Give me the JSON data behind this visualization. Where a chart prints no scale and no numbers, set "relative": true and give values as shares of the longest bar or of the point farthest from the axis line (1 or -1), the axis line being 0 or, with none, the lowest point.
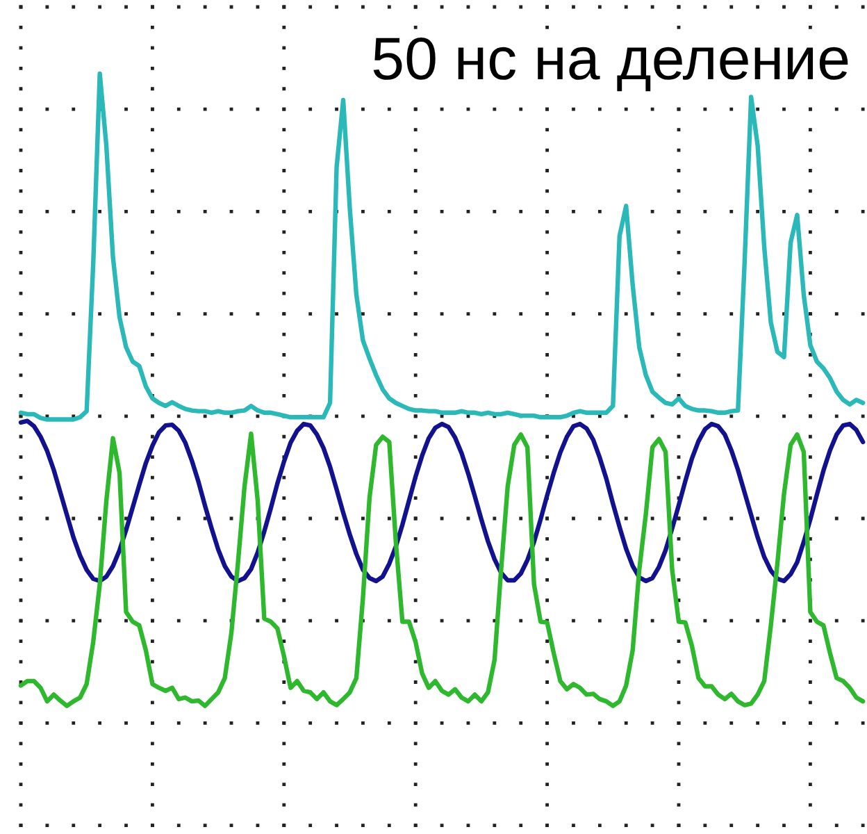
{
  "chart_data": {
    "type": "line",
    "relative": true,
    "grid": true,
    "categories": [
      null,
      null,
      null,
      null,
      null,
      null,
      null,
      null,
      null,
      null,
      null,
      null,
      null,
      null,
      null,
      null,
      null,
      null,
      null,
      null,
      null,
      null,
      null,
      null,
      null,
      null,
      null,
      null,
      null,
      null,
      null,
      null,
      null,
      null,
      null,
      null,
      null,
      null,
      null,
      null,
      null,
      null,
      null,
      null,
      null,
      null,
      null,
      null,
      null,
      null,
      null,
      null,
      null,
      null,
      null,
      null,
      null,
      null,
      null,
      null,
      null,
      null,
      null,
      null,
      null,
      null,
      null,
      null,
      null,
      null,
      null,
      null,
      null,
      null,
      null,
      null,
      null,
      null,
      null,
      null,
      null,
      null,
      null,
      null,
      null,
      null,
      null,
      null,
      null,
      null,
      null,
      null,
      null,
      null,
      null,
      null,
      null,
      null,
      null,
      null,
      null,
      null,
      null,
      null,
      null,
      null,
      null,
      null,
      null,
      null,
      null,
      null,
      null,
      null,
      null,
      null,
      null,
      null,
      null,
      null,
      null,
      null,
      null,
      null,
      null,
      null,
      null,
      null,
      null
    ],
    "series": [
      {
        "color": "#2ab8b8",
        "values": [
          0.549,
          0.547,
          0.547,
          0.542,
          0.54,
          0.54,
          0.54,
          0.54,
          0.54,
          0.543,
          0.551,
          0.747,
          1,
          0.904,
          0.756,
          0.676,
          0.636,
          0.617,
          0.611,
          0.584,
          0.568,
          0.562,
          0.558,
          0.563,
          0.558,
          0.554,
          0.552,
          0.551,
          0.551,
          0.549,
          0.551,
          0.549,
          0.549,
          0.551,
          0.552,
          0.558,
          0.552,
          0.549,
          0.549,
          0.547,
          0.545,
          0.543,
          0.543,
          0.543,
          0.543,
          0.543,
          0.543,
          0.562,
          0.876,
          0.965,
          0.821,
          0.706,
          0.645,
          0.621,
          0.599,
          0.58,
          0.568,
          0.562,
          0.558,
          0.554,
          0.552,
          0.552,
          0.551,
          0.551,
          0.549,
          0.549,
          0.549,
          0.551,
          0.549,
          0.549,
          0.547,
          0.549,
          0.547,
          0.547,
          0.549,
          0.547,
          0.545,
          0.545,
          0.545,
          0.543,
          0.543,
          0.543,
          0.543,
          0.545,
          0.549,
          0.551,
          0.549,
          0.549,
          0.549,
          0.549,
          0.558,
          0.784,
          0.824,
          0.719,
          0.636,
          0.599,
          0.577,
          0.569,
          0.562,
          0.56,
          0.568,
          0.558,
          0.554,
          0.552,
          0.552,
          0.551,
          0.549,
          0.549,
          0.551,
          0.552,
          0.747,
          0.969,
          0.904,
          0.769,
          0.669,
          0.63,
          0.623,
          0.775,
          0.812,
          0.706,
          0.639,
          0.617,
          0.608,
          0.595,
          0.577,
          0.566,
          0.56,
          0.566,
          0.562
        ]
      },
      {
        "color": "#12128f",
        "values": [
          0.536,
          0.538,
          0.531,
          0.517,
          0.498,
          0.473,
          0.443,
          0.413,
          0.383,
          0.359,
          0.34,
          0.328,
          0.325,
          0.331,
          0.345,
          0.366,
          0.393,
          0.423,
          0.453,
          0.482,
          0.505,
          0.523,
          0.532,
          0.533,
          0.525,
          0.509,
          0.485,
          0.457,
          0.425,
          0.395,
          0.367,
          0.345,
          0.331,
          0.325,
          0.329,
          0.341,
          0.363,
          0.391,
          0.422,
          0.455,
          0.484,
          0.509,
          0.525,
          0.534,
          0.532,
          0.52,
          0.502,
          0.477,
          0.447,
          0.416,
          0.387,
          0.361,
          0.34,
          0.329,
          0.325,
          0.331,
          0.348,
          0.371,
          0.4,
          0.432,
          0.464,
          0.492,
          0.515,
          0.529,
          0.534,
          0.53,
          0.516,
          0.495,
          0.468,
          0.438,
          0.407,
          0.378,
          0.354,
          0.336,
          0.326,
          0.326,
          0.335,
          0.353,
          0.377,
          0.407,
          0.439,
          0.469,
          0.496,
          0.517,
          0.531,
          0.534,
          0.528,
          0.513,
          0.489,
          0.461,
          0.428,
          0.397,
          0.368,
          0.345,
          0.33,
          0.325,
          0.329,
          0.344,
          0.366,
          0.395,
          0.426,
          0.458,
          0.488,
          0.511,
          0.527,
          0.534,
          0.531,
          0.52,
          0.499,
          0.473,
          0.443,
          0.413,
          0.383,
          0.357,
          0.339,
          0.328,
          0.325,
          0.334,
          0.35,
          0.377,
          0.407,
          0.44,
          0.472,
          0.499,
          0.52,
          0.532,
          0.534,
          0.526,
          0.51
        ]
      },
      {
        "color": "#2eb82e",
        "values": [
          0.186,
          0.192,
          0.192,
          0.183,
          0.165,
          0.174,
          0.166,
          0.159,
          0.165,
          0.17,
          0.188,
          0.244,
          0.321,
          0.432,
          0.515,
          0.469,
          0.284,
          0.271,
          0.266,
          0.233,
          0.188,
          0.183,
          0.179,
          0.183,
          0.168,
          0.17,
          0.165,
          0.166,
          0.159,
          0.168,
          0.177,
          0.196,
          0.256,
          0.349,
          0.451,
          0.521,
          0.432,
          0.275,
          0.271,
          0.262,
          0.225,
          0.183,
          0.192,
          0.179,
          0.177,
          0.168,
          0.177,
          0.165,
          0.16,
          0.168,
          0.177,
          0.196,
          0.303,
          0.436,
          0.506,
          0.517,
          0.51,
          0.377,
          0.271,
          0.271,
          0.244,
          0.202,
          0.183,
          0.192,
          0.179,
          0.174,
          0.181,
          0.17,
          0.165,
          0.174,
          0.165,
          0.177,
          0.22,
          0.34,
          0.451,
          0.506,
          0.52,
          0.503,
          0.321,
          0.271,
          0.27,
          0.229,
          0.192,
          0.181,
          0.188,
          0.183,
          0.174,
          0.175,
          0.168,
          0.165,
          0.159,
          0.165,
          0.186,
          0.233,
          0.34,
          0.414,
          0.503,
          0.514,
          0.497,
          0.34,
          0.271,
          0.27,
          0.239,
          0.196,
          0.185,
          0.185,
          0.174,
          0.168,
          0.175,
          0.165,
          0.16,
          0.162,
          0.174,
          0.192,
          0.266,
          0.349,
          0.441,
          0.506,
          0.52,
          0.497,
          0.284,
          0.271,
          0.266,
          0.229,
          0.196,
          0.192,
          0.183,
          0.17,
          0.165
        ]
      }
    ],
    "annotations": [
      "50 нс на деление"
    ]
  }
}
